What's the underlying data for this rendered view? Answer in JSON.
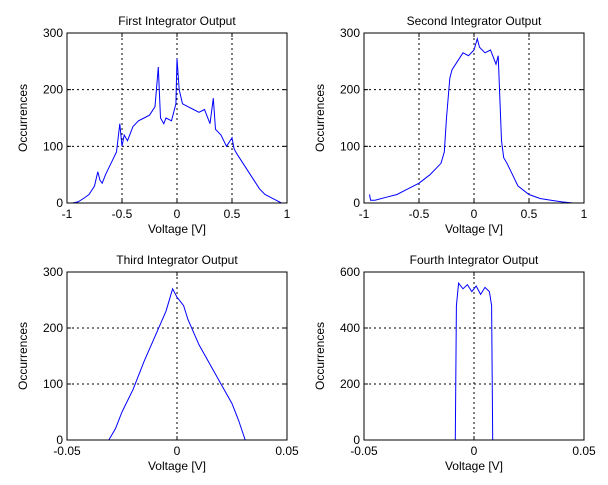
{
  "chart_data": [
    {
      "type": "line",
      "title": "First Integrator Output",
      "xlabel": "Voltage [V]",
      "ylabel": "Occurrences",
      "xlim": [
        -1,
        1
      ],
      "ylim": [
        0,
        300
      ],
      "x_ticks": [
        "-1",
        "-0.5",
        "0",
        "0.5",
        "1"
      ],
      "y_ticks": [
        "0",
        "100",
        "200",
        "300"
      ],
      "grid": true,
      "color": "#0000ff",
      "series": [
        {
          "x": [
            -0.95,
            -0.9,
            -0.85,
            -0.8,
            -0.75,
            -0.72,
            -0.7,
            -0.68,
            -0.65,
            -0.6,
            -0.55,
            -0.52,
            -0.5,
            -0.48,
            -0.45,
            -0.4,
            -0.35,
            -0.3,
            -0.25,
            -0.2,
            -0.17,
            -0.15,
            -0.12,
            -0.1,
            -0.05,
            -0.01,
            0,
            0.02,
            0.05,
            0.1,
            0.15,
            0.2,
            0.25,
            0.3,
            0.33,
            0.35,
            0.4,
            0.45,
            0.5,
            0.52,
            0.55,
            0.6,
            0.65,
            0.7,
            0.75,
            0.8,
            0.85,
            0.9,
            0.95
          ],
          "y": [
            0,
            2,
            8,
            15,
            30,
            55,
            40,
            35,
            50,
            70,
            90,
            140,
            100,
            120,
            110,
            135,
            145,
            150,
            155,
            170,
            240,
            150,
            140,
            150,
            145,
            175,
            255,
            200,
            175,
            170,
            165,
            160,
            165,
            140,
            185,
            130,
            120,
            100,
            115,
            95,
            85,
            70,
            55,
            40,
            25,
            15,
            10,
            5,
            0
          ]
        }
      ]
    },
    {
      "type": "line",
      "title": "Second Integrator Output",
      "xlabel": "Voltage [V]",
      "ylabel": "Occurrences",
      "xlim": [
        -1,
        1
      ],
      "ylim": [
        0,
        300
      ],
      "x_ticks": [
        "-1",
        "-0.5",
        "0",
        "0.5",
        "1"
      ],
      "y_ticks": [
        "0",
        "100",
        "200",
        "300"
      ],
      "grid": true,
      "color": "#0000ff",
      "series": [
        {
          "x": [
            -0.95,
            -0.94,
            -0.9,
            -0.8,
            -0.7,
            -0.6,
            -0.5,
            -0.4,
            -0.3,
            -0.27,
            -0.25,
            -0.22,
            -0.2,
            -0.15,
            -0.1,
            -0.05,
            0,
            0.03,
            0.05,
            0.1,
            0.15,
            0.2,
            0.22,
            0.25,
            0.27,
            0.3,
            0.35,
            0.4,
            0.5,
            0.6,
            0.7,
            0.8,
            0.9,
            0.95
          ],
          "y": [
            15,
            5,
            5,
            10,
            15,
            25,
            35,
            50,
            70,
            90,
            150,
            220,
            235,
            250,
            265,
            260,
            270,
            290,
            275,
            265,
            270,
            245,
            260,
            110,
            80,
            70,
            50,
            30,
            15,
            8,
            5,
            2,
            0,
            0
          ]
        }
      ]
    },
    {
      "type": "line",
      "title": "Third Integrator Output",
      "xlabel": "Voltage [V]",
      "ylabel": "Occurrences",
      "xlim": [
        -0.05,
        0.05
      ],
      "ylim": [
        0,
        300
      ],
      "x_ticks": [
        "-0.05",
        "0",
        "0.05"
      ],
      "y_ticks": [
        "0",
        "100",
        "200",
        "300"
      ],
      "grid": true,
      "color": "#0000ff",
      "series": [
        {
          "x": [
            -0.05,
            -0.031,
            -0.028,
            -0.025,
            -0.02,
            -0.015,
            -0.01,
            -0.005,
            -0.002,
            0,
            0.003,
            0.005,
            0.01,
            0.015,
            0.02,
            0.025,
            0.028,
            0.031,
            0.05
          ],
          "y": [
            0,
            0,
            20,
            50,
            90,
            140,
            185,
            230,
            270,
            255,
            240,
            215,
            170,
            135,
            100,
            65,
            35,
            0,
            0
          ]
        }
      ]
    },
    {
      "type": "line",
      "title": "Fourth Integrator Output",
      "xlabel": "Voltage [V]",
      "ylabel": "Occurrences",
      "xlim": [
        -0.05,
        0.05
      ],
      "ylim": [
        0,
        600
      ],
      "x_ticks": [
        "-0.05",
        "0",
        "0.05"
      ],
      "y_ticks": [
        "0",
        "200",
        "400",
        "600"
      ],
      "grid": true,
      "color": "#0000ff",
      "series": [
        {
          "x": [
            -0.05,
            -0.0085,
            -0.008,
            -0.007,
            -0.005,
            -0.003,
            -0.001,
            0.001,
            0.003,
            0.005,
            0.007,
            0.008,
            0.0085,
            0.05
          ],
          "y": [
            0,
            0,
            480,
            560,
            540,
            555,
            530,
            550,
            520,
            545,
            530,
            480,
            0,
            0
          ]
        }
      ]
    }
  ]
}
